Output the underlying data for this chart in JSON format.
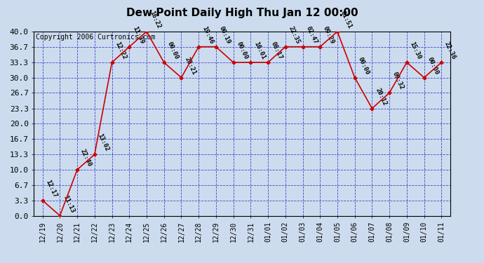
{
  "title": "Dew Point Daily High Thu Jan 12 00:00",
  "copyright": "Copyright 2006 Curtronics.com",
  "x_labels": [
    "12/19",
    "12/20",
    "12/21",
    "12/22",
    "12/23",
    "12/24",
    "12/25",
    "12/26",
    "12/27",
    "12/28",
    "12/29",
    "12/30",
    "12/31",
    "01/01",
    "01/02",
    "01/03",
    "01/04",
    "01/05",
    "01/06",
    "01/07",
    "01/08",
    "01/09",
    "01/10",
    "01/11"
  ],
  "y_values": [
    3.3,
    0.0,
    10.0,
    13.3,
    33.3,
    36.7,
    40.0,
    33.3,
    30.0,
    36.7,
    36.7,
    33.3,
    33.3,
    33.3,
    36.7,
    36.7,
    36.7,
    40.0,
    30.0,
    23.3,
    26.7,
    33.3,
    30.0,
    33.3
  ],
  "annotations": [
    "12:17",
    "11:13",
    "22:40",
    "13:02",
    "12:22",
    "11:39",
    "16:22",
    "00:00",
    "20:21",
    "19:46",
    "00:19",
    "00:00",
    "16:01",
    "08:17",
    "22:35",
    "02:47",
    "09:29",
    "01:51",
    "00:00",
    "20:12",
    "09:32",
    "15:30",
    "00:00",
    "22:36"
  ],
  "ylim": [
    0.0,
    40.0
  ],
  "yticks": [
    0.0,
    3.3,
    6.7,
    10.0,
    13.3,
    16.7,
    20.0,
    23.3,
    26.7,
    30.0,
    33.3,
    36.7,
    40.0
  ],
  "line_color": "#cc0000",
  "marker_color": "#cc0000",
  "bg_color": "#ccdcee",
  "plot_bg": "#ccdcee",
  "grid_color": "#3333cc",
  "title_fontsize": 11,
  "copyright_fontsize": 7,
  "annotation_fontsize": 6.5,
  "xlabel_fontsize": 7,
  "ylabel_fontsize": 8
}
